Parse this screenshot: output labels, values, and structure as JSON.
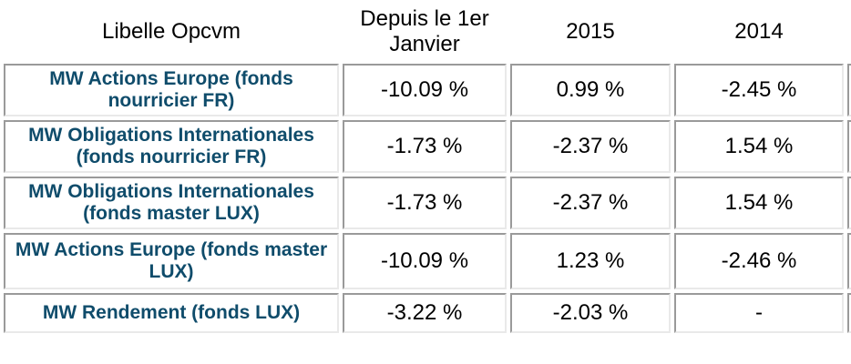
{
  "chart_data": {
    "type": "table",
    "columns": [
      "Libelle Opcvm",
      "Depuis le 1er Janvier",
      "2015",
      "2014"
    ],
    "rows": [
      {
        "label": "MW Actions Europe (fonds nourricier FR)",
        "values": [
          "-10.09 %",
          "0.99 %",
          "-2.45 %"
        ]
      },
      {
        "label": "MW Obligations Internationales (fonds nourricier FR)",
        "values": [
          "-1.73 %",
          "-2.37 %",
          "1.54 %"
        ]
      },
      {
        "label": "MW Obligations Internationales (fonds master LUX)",
        "values": [
          "-1.73 %",
          "-2.37 %",
          "1.54 %"
        ]
      },
      {
        "label": "MW Actions Europe (fonds master LUX)",
        "values": [
          "-10.09 %",
          "1.23 %",
          "-2.46 %"
        ]
      },
      {
        "label": "MW Rendement (fonds LUX)",
        "values": [
          "-3.22 %",
          "-2.03 %",
          "-"
        ]
      }
    ],
    "layout_hints": {
      "header_border": "none",
      "clipped_extra_column_right": true
    }
  },
  "colors": {
    "label_color": "#0f4c6b",
    "border_dark": "#9a9a9a",
    "border_light": "#e9e9e9",
    "value_text": "#000000",
    "background": "#ffffff"
  }
}
